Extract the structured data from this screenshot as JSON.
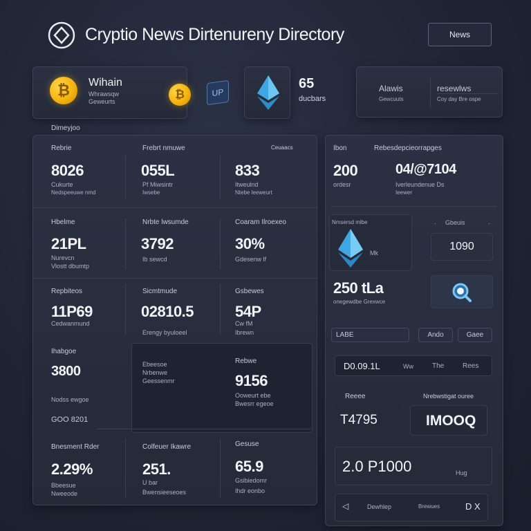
{
  "header": {
    "title": "Cryptio News Dirtenureny Directory",
    "news_button": "News"
  },
  "top_cards": {
    "card1_title": "Wihain",
    "card1_sub1": "Whrawsqw",
    "card1_sub2": "Geweurts",
    "coin_symbol": "₿",
    "up_badge": "UP",
    "count_value": "65",
    "count_label": "ducbars",
    "card3_col1_title": "Alawis",
    "card3_col1_sub": "Gewcuuts",
    "card3_col2_title": "resewlws",
    "card3_col2_sub": "Coy day Bre ospe"
  },
  "section_label": "Dimeyjoo",
  "grid": [
    {
      "label": "Rebrie",
      "value": "8026",
      "sub1": "Cukurte",
      "sub2": "Nedspeeuwe nmd"
    },
    {
      "label": "Frebrt nmuwe",
      "value": "055L",
      "sub1": "Pf Miwsintr",
      "sub2": "Iwsebe"
    },
    {
      "label": "Ceuaacs",
      "value": "833",
      "sub1": "Itweulnd",
      "sub2": "Ntebe leeweurt"
    },
    {
      "label": "Hbelme",
      "value": "21PL",
      "sub1": "Nurevcn",
      "sub2": "Vlostt dbumtp"
    },
    {
      "label": "Nrbte lwsumde",
      "value": "3792",
      "sub1": "Ib sewcd",
      "sub2": ""
    },
    {
      "label": "Coaram Ilroexeo",
      "value": "30%",
      "sub1": "Gdesenw lf",
      "sub2": ""
    },
    {
      "label": "Repbiteos",
      "value": "11P69",
      "sub1": "Cedwanmund",
      "sub2": ""
    },
    {
      "label": "Sicmtmude",
      "value": "02810.5",
      "sub1": "Erengy byuloeel",
      "sub2": ""
    },
    {
      "label": "Gsbewes",
      "value": "54P",
      "sub1": "Cw fM",
      "sub2": "Ibrewn"
    },
    {
      "label": "Ihabgoe",
      "value": "3800",
      "sub1": "Nodss ewgoe",
      "sub2": ""
    },
    {
      "label": "Ebeesoe",
      "value": "",
      "sub1": "Nrbenwe",
      "sub2": "Geessenmr"
    },
    {
      "label": "Rebwe",
      "value": "9156",
      "sub1": "Ooweurt ebe",
      "sub2": "Bwesrr egeoe"
    },
    {
      "label": "Bnesment Rder",
      "value": "2.29%",
      "sub1": "Bbeesue",
      "sub2": "Nweeode"
    },
    {
      "label": "Colfeuer Ikawre",
      "value": "251.",
      "sub1": "U bar",
      "sub2": "Bwensieeseoes"
    },
    {
      "label": "Gesuse",
      "value": "65.9",
      "sub1": "Gsibiedomr",
      "sub2": "Ihdr eonbo"
    }
  ],
  "grid_footer": "GOO 8201",
  "right": {
    "head_label1": "Ibon",
    "head_label2": "Rebesdepcieorrapges",
    "head_value1": "200",
    "head_sub1": "ordesr",
    "head_value2": "04/@7104",
    "head_sub2": "Iverleundenue Ds",
    "head_sub3": "Ieewer",
    "eth_caption": "Nmsersd mlbe",
    "eth_tag": "Mk",
    "gauge_label": "Gbeuis",
    "gauge_value": "1090",
    "big_value": "250 tLa",
    "big_sub": "onegewdbe Grexwce",
    "filter_label": "LABE",
    "filter_btn1": "Ando",
    "filter_btn2": "Gaee",
    "strip_value": "D0.09.1L",
    "strip_mid": "Ww",
    "strip_right": "The",
    "strip_tail": "Rees",
    "row_label1": "Reeee",
    "row_label2": "Nrebwstigat ouree",
    "row_value1": "T4795",
    "row_value2": "IMOOQ",
    "long_value": "2.0 P1000",
    "long_tag": "Hug",
    "footer_label": "Dewhlep",
    "footer_mid": "Brewues",
    "footer_right": "D X"
  },
  "colors": {
    "accent_blue": "#4fb3e8",
    "coin_gold": "#f5b40f",
    "bg": "#1f2433"
  }
}
